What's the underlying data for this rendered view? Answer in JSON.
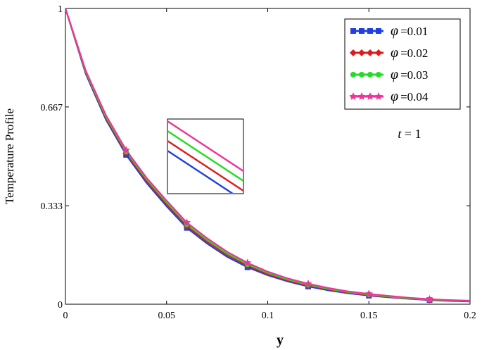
{
  "chart_data": {
    "type": "line",
    "xlabel": "y",
    "ylabel": "Temperature Profile",
    "xlim": [
      0,
      0.2
    ],
    "ylim": [
      0,
      1
    ],
    "xticks": [
      "0",
      "0.05",
      "0.1",
      "0.15",
      "0.2"
    ],
    "xtick_values": [
      0,
      0.05,
      0.1,
      0.15,
      0.2
    ],
    "yticks": [
      "0",
      "0.333",
      "0.667",
      "1"
    ],
    "ytick_values": [
      0,
      0.333,
      0.667,
      1
    ],
    "x": [
      0,
      0.01,
      0.02,
      0.03,
      0.04,
      0.05,
      0.06,
      0.07,
      0.08,
      0.09,
      0.1,
      0.11,
      0.12,
      0.13,
      0.14,
      0.15,
      0.16,
      0.17,
      0.18,
      0.19,
      0.2
    ],
    "marker_x": [
      0.03,
      0.06,
      0.09,
      0.12,
      0.15,
      0.18
    ],
    "series": [
      {
        "name": "φ = 0.01",
        "color": "#1f3fe0",
        "marker": "square",
        "values": [
          1.0,
          0.779,
          0.624,
          0.505,
          0.411,
          0.331,
          0.258,
          0.205,
          0.16,
          0.125,
          0.098,
          0.077,
          0.06,
          0.047,
          0.037,
          0.029,
          0.023,
          0.018,
          0.014,
          0.011,
          0.009
        ]
      },
      {
        "name": "φ = 0.02",
        "color": "#e01a1a",
        "marker": "diamond",
        "values": [
          1.0,
          0.783,
          0.629,
          0.511,
          0.417,
          0.338,
          0.264,
          0.211,
          0.166,
          0.13,
          0.102,
          0.08,
          0.063,
          0.05,
          0.039,
          0.031,
          0.024,
          0.019,
          0.015,
          0.012,
          0.01
        ]
      },
      {
        "name": "φ = 0.03",
        "color": "#22dd22",
        "marker": "circle",
        "values": [
          1.0,
          0.786,
          0.634,
          0.516,
          0.423,
          0.344,
          0.27,
          0.217,
          0.171,
          0.135,
          0.106,
          0.083,
          0.066,
          0.052,
          0.041,
          0.033,
          0.026,
          0.02,
          0.016,
          0.013,
          0.011
        ]
      },
      {
        "name": "φ = 0.04",
        "color": "#ee3399",
        "marker": "star",
        "values": [
          1.0,
          0.79,
          0.639,
          0.521,
          0.428,
          0.35,
          0.276,
          0.223,
          0.177,
          0.14,
          0.11,
          0.087,
          0.069,
          0.055,
          0.043,
          0.035,
          0.028,
          0.022,
          0.017,
          0.014,
          0.012
        ]
      }
    ],
    "legend": {
      "placement": "top-right",
      "entries": [
        {
          "symbol": "φ",
          "value": "=0.01"
        },
        {
          "symbol": "φ",
          "value": "=0.02"
        },
        {
          "symbol": "φ",
          "value": "=0.03"
        },
        {
          "symbol": "φ",
          "value": "=0.04"
        }
      ]
    },
    "annotation": {
      "var": "t",
      "rest": " = 1"
    },
    "inset": "zoomed view showing four parallel lines",
    "grid": false
  }
}
